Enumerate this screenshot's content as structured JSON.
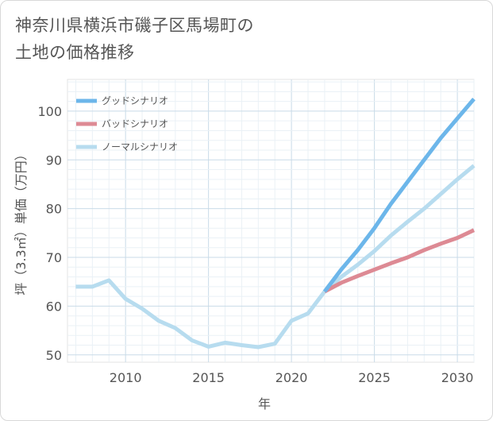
{
  "title_lines": [
    "神奈川県横浜市磯子区馬場町の",
    "土地の価格推移"
  ],
  "chart_data": {
    "type": "line",
    "xlabel": "年",
    "ylabel": "坪（3.3㎡）単価（万円）",
    "xlim": [
      2006.5,
      2031
    ],
    "ylim": [
      48.5,
      106.5
    ],
    "x_ticks": [
      2010,
      2015,
      2020,
      2025,
      2030
    ],
    "y_ticks": [
      50,
      60,
      70,
      80,
      90,
      100
    ],
    "grid": true,
    "legend_position": "top-left",
    "series": [
      {
        "name": "グッドシナリオ",
        "color": "#6cb6ea",
        "x": [
          2022,
          2023,
          2024,
          2025,
          2026,
          2027,
          2028,
          2029,
          2030,
          2031
        ],
        "values": [
          63,
          67.5,
          71.5,
          76,
          81,
          85.5,
          90,
          94.5,
          98.5,
          102.5
        ]
      },
      {
        "name": "バッドシナリオ",
        "color": "#dd8a94",
        "x": [
          2022,
          2023,
          2024,
          2025,
          2026,
          2027,
          2028,
          2029,
          2030,
          2031
        ],
        "values": [
          63,
          64.8,
          66.2,
          67.5,
          68.8,
          70,
          71.5,
          72.8,
          74,
          75.6
        ]
      },
      {
        "name": "ノーマルシナリオ",
        "color": "#b7dcef",
        "x": [
          2007,
          2008,
          2009,
          2010,
          2011,
          2012,
          2013,
          2014,
          2015,
          2016,
          2017,
          2018,
          2019,
          2020,
          2021,
          2022,
          2023,
          2024,
          2025,
          2026,
          2027,
          2028,
          2029,
          2030,
          2031
        ],
        "values": [
          64,
          64,
          65.3,
          61.5,
          59.5,
          57,
          55.5,
          53,
          51.7,
          52.5,
          52,
          51.6,
          52.3,
          57,
          58.5,
          63,
          66,
          68.5,
          71.3,
          74.5,
          77.3,
          80,
          83,
          86,
          88.8
        ]
      }
    ]
  }
}
